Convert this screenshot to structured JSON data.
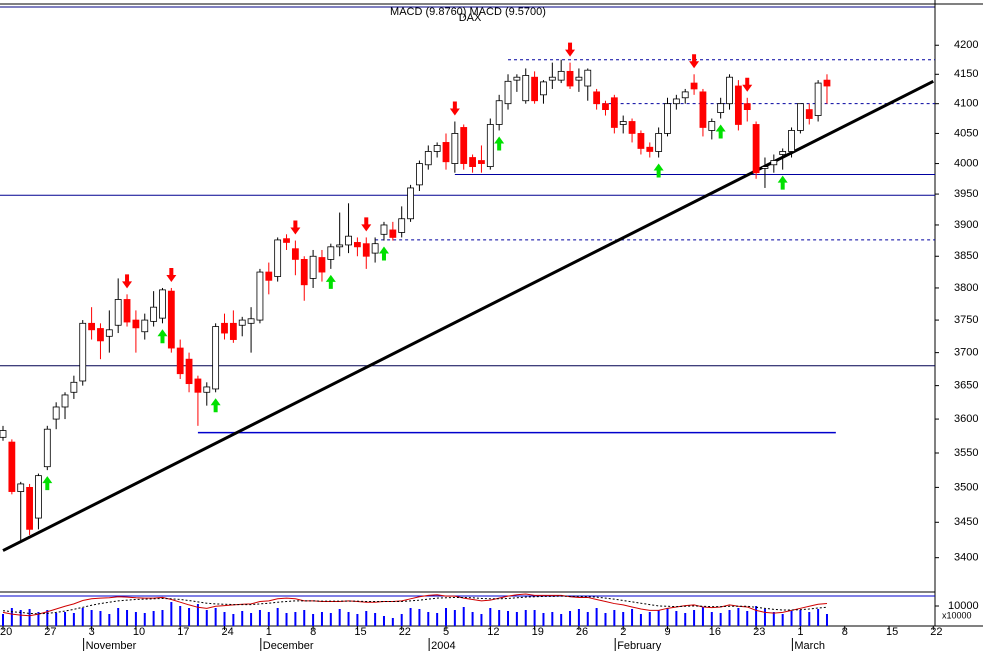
{
  "chart_data": [
    {
      "type": "candlestick",
      "title": "DAX",
      "subtitle": "MACD (9.8760) MACD (9.5700)",
      "categories": [
        "20",
        null,
        null,
        null,
        null,
        "27",
        null,
        null,
        null,
        null,
        "3",
        null,
        null,
        null,
        null,
        "10",
        null,
        null,
        null,
        null,
        "17",
        null,
        null,
        null,
        null,
        "24",
        null,
        null,
        null,
        null,
        "1",
        null,
        null,
        null,
        null,
        "8",
        null,
        null,
        null,
        null,
        "15",
        null,
        null,
        null,
        null,
        "22",
        null,
        null,
        null,
        null,
        "5",
        null,
        null,
        null,
        null,
        "12",
        null,
        null,
        null,
        null,
        "19",
        null,
        null,
        null,
        null,
        "26",
        null,
        null,
        null,
        null,
        "2",
        null,
        null,
        null,
        null,
        "9",
        null,
        null,
        null,
        null,
        "16",
        null,
        null,
        null,
        null,
        "23",
        null,
        null,
        null,
        null,
        "1",
        null,
        null,
        null,
        null,
        "8",
        null,
        null,
        null,
        null,
        "15",
        null,
        null,
        null,
        null,
        "22"
      ],
      "month_labels": [
        null,
        null,
        null,
        null,
        null,
        null,
        null,
        null,
        null,
        null,
        "November",
        null,
        null,
        null,
        null,
        null,
        null,
        null,
        null,
        null,
        null,
        null,
        null,
        null,
        null,
        null,
        null,
        null,
        null,
        null,
        "December",
        null,
        null,
        null,
        null,
        null,
        null,
        null,
        null,
        null,
        null,
        null,
        null,
        null,
        null,
        null,
        null,
        null,
        null,
        "2004",
        null,
        null,
        null,
        null,
        null,
        null,
        null,
        null,
        null,
        null,
        null,
        null,
        null,
        null,
        null,
        null,
        null,
        null,
        null,
        null,
        "February",
        null,
        null,
        null,
        null,
        null,
        null,
        null,
        null,
        null,
        null,
        null,
        null,
        null,
        null,
        null,
        null,
        null,
        null,
        null,
        "March",
        null,
        null,
        null,
        null,
        null,
        null,
        null,
        null,
        null,
        null,
        null,
        null,
        null,
        null,
        null
      ],
      "open": [
        3573,
        3566,
        3494,
        3500,
        3456,
        3530,
        3600,
        3618,
        3640,
        3657,
        3745,
        3737,
        3725,
        3742,
        3782,
        3750,
        3732,
        3748,
        3753,
        3795,
        3707,
        3690,
        3660,
        3640,
        3645,
        3745,
        3745,
        3742,
        3745,
        3750,
        3825,
        3818,
        3878,
        3862,
        3845,
        3815,
        3848,
        3845,
        3865,
        3868,
        3872,
        3870,
        3855,
        3885,
        3892,
        3888,
        3910,
        3965,
        3998,
        4020,
        4035,
        4000,
        4060,
        4010,
        4005,
        3995,
        4065,
        4100,
        4140,
        4105,
        4145,
        4115,
        4140,
        4140,
        4155,
        4140,
        4130,
        4120,
        4100,
        4110,
        4065,
        4070,
        4050,
        4027,
        4020,
        4050,
        4100,
        4110,
        4135,
        4120,
        4055,
        4085,
        4100,
        4130,
        4100,
        4065,
        3992,
        3998,
        4015,
        4020,
        4055,
        4090,
        4080,
        4140,
        null,
        null,
        null,
        null,
        null,
        null,
        null,
        null,
        null,
        null,
        null,
        null
      ],
      "high": [
        3590,
        3570,
        3508,
        3505,
        3520,
        3590,
        3625,
        3640,
        3665,
        3750,
        3770,
        3745,
        3765,
        3815,
        3790,
        3765,
        3760,
        3795,
        3800,
        3800,
        3720,
        3700,
        3665,
        3655,
        3745,
        3760,
        3765,
        3755,
        3770,
        3830,
        3840,
        3880,
        3885,
        3875,
        3850,
        3860,
        3860,
        3870,
        3920,
        3935,
        3880,
        3880,
        3880,
        3905,
        3905,
        3930,
        3965,
        4005,
        4030,
        4035,
        4050,
        4070,
        4065,
        4015,
        4030,
        4075,
        4115,
        4150,
        4150,
        4160,
        4155,
        4140,
        4170,
        4175,
        4170,
        4160,
        4160,
        4125,
        4105,
        4115,
        4080,
        4075,
        4055,
        4035,
        4060,
        4110,
        4115,
        4125,
        4150,
        4125,
        4075,
        4110,
        4150,
        4140,
        4110,
        4070,
        4010,
        4015,
        4025,
        4060,
        4100,
        4100,
        4140,
        4150,
        null,
        null,
        null,
        null,
        null,
        null,
        null,
        null,
        null,
        null,
        null,
        null
      ],
      "low": [
        3568,
        3490,
        3423,
        3432,
        3440,
        3525,
        3585,
        3600,
        3630,
        3650,
        3720,
        3690,
        3700,
        3730,
        3740,
        3700,
        3720,
        3740,
        3745,
        3700,
        3660,
        3640,
        3590,
        3620,
        3640,
        3720,
        3715,
        3725,
        3700,
        3745,
        3790,
        3810,
        3860,
        3820,
        3780,
        3800,
        3810,
        3830,
        3850,
        3855,
        3850,
        3830,
        3840,
        3875,
        3875,
        3880,
        3905,
        3955,
        3990,
        4010,
        3990,
        3985,
        3990,
        3985,
        3985,
        3990,
        4055,
        4090,
        4120,
        4100,
        4100,
        4100,
        4125,
        4135,
        4125,
        4120,
        4105,
        4090,
        4080,
        4050,
        4050,
        4035,
        4015,
        4010,
        4010,
        4045,
        4090,
        4100,
        4115,
        4045,
        4040,
        4075,
        4090,
        4055,
        4070,
        3975,
        3960,
        3985,
        3990,
        4010,
        4050,
        4065,
        4070,
        4100,
        null,
        null,
        null,
        null,
        null,
        null,
        null,
        null,
        null,
        null,
        null,
        null
      ],
      "close": [
        3583,
        3494,
        3505,
        3440,
        3517,
        3585,
        3618,
        3636,
        3655,
        3745,
        3735,
        3718,
        3735,
        3782,
        3747,
        3738,
        3750,
        3770,
        3797,
        3707,
        3668,
        3653,
        3640,
        3648,
        3740,
        3730,
        3720,
        3750,
        3752,
        3825,
        3812,
        3876,
        3872,
        3845,
        3805,
        3850,
        3825,
        3865,
        3868,
        3882,
        3865,
        3850,
        3870,
        3900,
        3880,
        3910,
        3960,
        4000,
        4020,
        4030,
        4003,
        4050,
        4000,
        3995,
        4000,
        4065,
        4105,
        4138,
        4145,
        4148,
        4105,
        4137,
        4145,
        4155,
        4130,
        4145,
        4157,
        4100,
        4090,
        4060,
        4070,
        4050,
        4025,
        4020,
        4050,
        4100,
        4108,
        4120,
        4125,
        4060,
        4070,
        4100,
        4145,
        4065,
        4090,
        3985,
        3995,
        4005,
        4020,
        4055,
        4100,
        4075,
        4135,
        4130,
        null,
        null,
        null,
        null,
        null,
        null,
        null,
        null,
        null,
        null,
        null,
        null
      ],
      "up_color": "#ffffff",
      "down_color": "#ff0000",
      "log_scale": true,
      "ylim": [
        3355,
        4265
      ],
      "yticks": [
        3400,
        3450,
        3500,
        3550,
        3600,
        3650,
        3700,
        3750,
        3800,
        3850,
        3900,
        3950,
        4000,
        4050,
        4100,
        4150,
        4200
      ],
      "buy_signals": [
        5,
        18,
        24,
        37,
        43,
        56,
        74,
        81,
        88
      ],
      "buy_color": "#00e000",
      "sell_signals": [
        14,
        19,
        33,
        41,
        51,
        64,
        78,
        84
      ],
      "sell_color": "#ff0000",
      "reference_lines": [
        {
          "value": 3948,
          "style": "solid",
          "color": "#000090"
        },
        {
          "value": 3680,
          "style": "solid",
          "color": "#000050"
        },
        {
          "value": 3580,
          "style": "solid",
          "color": "#0000cc",
          "from": 22,
          "to": 94
        },
        {
          "value": 3982,
          "style": "solid",
          "color": "#0000a0",
          "from": 51
        },
        {
          "value": 4175,
          "style": "dashed",
          "color": "#0000a0",
          "from": 57
        },
        {
          "value": 4100,
          "style": "dashed",
          "color": "#0000a0",
          "from": 67
        },
        {
          "value": 3876,
          "style": "dashed",
          "color": "#0000a0",
          "from": 42
        }
      ],
      "trendline": [
        [
          0,
          3410
        ],
        [
          105,
          4138
        ]
      ],
      "trendline_color": "#000000"
    },
    {
      "type": "volume_macd",
      "ylabel": "x10000",
      "volume": {
        "color": "#0000ff",
        "ylim": [
          0,
          17000
        ],
        "yticks": [
          {
            "value": 10000,
            "label": "10000"
          }
        ],
        "values": [
          6000,
          9000,
          8000,
          8500,
          7000,
          8000,
          6500,
          7000,
          6500,
          9000,
          8000,
          7500,
          6000,
          9000,
          8000,
          7000,
          6500,
          7500,
          8000,
          12000,
          10000,
          9000,
          11000,
          8000,
          9000,
          7000,
          6000,
          7500,
          6500,
          8000,
          7000,
          9000,
          6500,
          7000,
          8000,
          6000,
          7000,
          6500,
          8500,
          7000,
          6000,
          7500,
          6500,
          5000,
          4000,
          6000,
          9000,
          8500,
          7000,
          6500,
          9000,
          8000,
          9500,
          7000,
          6000,
          9000,
          8000,
          7500,
          7000,
          8000,
          8000,
          6500,
          7000,
          6000,
          7500,
          8500,
          7000,
          9000,
          6500,
          8000,
          7000,
          8500,
          6000,
          7000,
          8000,
          9000,
          7500,
          6500,
          8000,
          9500,
          7000,
          6500,
          8000,
          9000,
          7500,
          10000,
          8500,
          7000,
          6000,
          7500,
          8000,
          7000,
          8500,
          6000,
          null,
          null,
          null,
          null,
          null,
          null,
          null,
          null,
          null,
          null,
          null,
          null
        ]
      },
      "ylim": [
        -50,
        50
      ],
      "series": [
        {
          "color": "#d00000",
          "style": "solid",
          "values": [
            -10,
            -15,
            -18,
            -20,
            -15,
            -8,
            0,
            8,
            15,
            25,
            30,
            32,
            33,
            36,
            35,
            33,
            32,
            32,
            34,
            28,
            20,
            12,
            5,
            2,
            8,
            10,
            12,
            14,
            15,
            22,
            24,
            30,
            32,
            30,
            24,
            24,
            22,
            22,
            22,
            24,
            22,
            20,
            20,
            22,
            22,
            24,
            30,
            36,
            40,
            42,
            38,
            38,
            32,
            28,
            24,
            26,
            32,
            38,
            42,
            44,
            40,
            40,
            40,
            40,
            36,
            34,
            34,
            28,
            22,
            16,
            12,
            6,
            0,
            -4,
            -4,
            2,
            6,
            10,
            12,
            6,
            4,
            6,
            12,
            8,
            6,
            -4,
            -10,
            -12,
            -10,
            -4,
            2,
            8,
            14,
            16,
            null,
            null,
            null,
            null,
            null,
            null,
            null,
            null,
            null,
            null,
            null,
            null
          ]
        },
        {
          "color": "#000000",
          "style": "dashed",
          "values": [
            -5,
            -8,
            -10,
            -13,
            -14,
            -13,
            -10,
            -6,
            -1,
            5,
            11,
            16,
            20,
            24,
            26,
            28,
            29,
            30,
            31,
            30,
            28,
            25,
            21,
            17,
            15,
            14,
            13,
            13,
            13,
            15,
            17,
            20,
            22,
            24,
            24,
            24,
            23,
            23,
            23,
            23,
            23,
            22,
            22,
            22,
            22,
            22,
            24,
            26,
            29,
            32,
            33,
            34,
            34,
            33,
            31,
            30,
            30,
            31,
            33,
            35,
            36,
            37,
            37,
            38,
            37,
            37,
            36,
            35,
            32,
            29,
            25,
            21,
            17,
            13,
            9,
            8,
            7,
            8,
            9,
            8,
            7,
            7,
            8,
            8,
            8,
            5,
            2,
            -1,
            -3,
            -3,
            -2,
            0,
            3,
            5,
            null,
            null,
            null,
            null,
            null,
            null,
            null,
            null,
            null,
            null,
            null,
            null
          ]
        }
      ]
    }
  ]
}
